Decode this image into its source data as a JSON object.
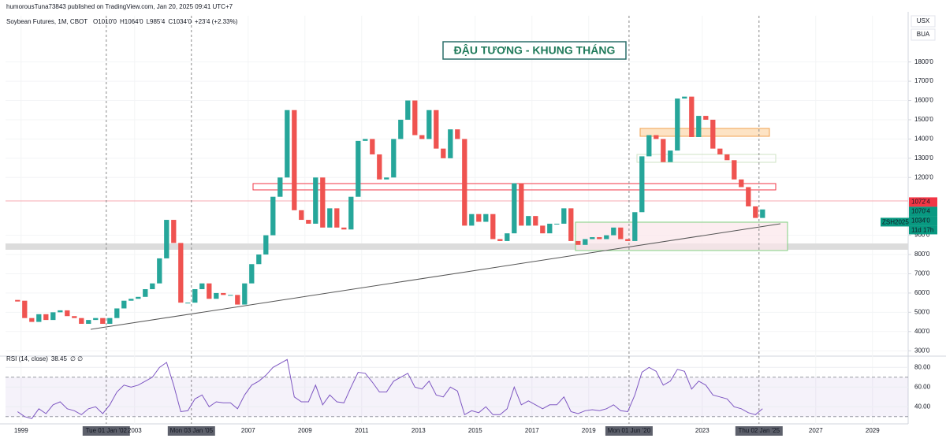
{
  "chart_data": {
    "type": "candlestick",
    "header": "humorousTuna73843 published on TradingView.com, Jan 20, 2025 09:41 UTC+7",
    "symbol": "Soybean Futures, 1M, CBOT",
    "ohlc": [
      "O1010'0",
      "H1064'0",
      "L985'4",
      "C1034'0",
      "+23'4 (+2.33%)"
    ],
    "title": "ĐẬU TƯƠNG - KHUNG THÁNG",
    "toolbar": [
      "USX",
      "BUA"
    ],
    "ticker": "ZSH2025",
    "countdown": "11d 17h",
    "up_color": "#26a69a",
    "down_color": "#ef5350",
    "grid": true,
    "x": [
      1998.75,
      1999,
      1999.25,
      1999.5,
      1999.75,
      2000,
      2000.25,
      2000.5,
      2000.75,
      2001,
      2001.25,
      2001.5,
      2001.75,
      2002,
      2002.25,
      2002.5,
      2002.75,
      2003,
      2003.25,
      2003.5,
      2003.75,
      2004,
      2004.25,
      2004.5,
      2004.75,
      2005,
      2005.25,
      2005.5,
      2005.75,
      2006,
      2006.25,
      2006.5,
      2006.75,
      2007,
      2007.25,
      2007.5,
      2007.75,
      2008,
      2008.25,
      2008.5,
      2008.75,
      2009,
      2009.25,
      2009.5,
      2009.75,
      2010,
      2010.25,
      2010.5,
      2010.75,
      2011,
      2011.25,
      2011.5,
      2011.75,
      2012,
      2012.25,
      2012.5,
      2012.75,
      2013,
      2013.25,
      2013.5,
      2013.75,
      2014,
      2014.25,
      2014.5,
      2014.75,
      2015,
      2015.25,
      2015.5,
      2015.75,
      2016,
      2016.25,
      2016.5,
      2016.75,
      2017,
      2017.25,
      2017.5,
      2017.75,
      2018,
      2018.25,
      2018.5,
      2018.75,
      2019,
      2019.25,
      2019.5,
      2019.75,
      2020,
      2020.25,
      2020.5,
      2020.75,
      2021,
      2021.25,
      2021.5,
      2021.75,
      2022,
      2022.25,
      2022.5,
      2022.75,
      2023,
      2023.25,
      2023.5,
      2023.75,
      2024,
      2024.25,
      2024.5,
      2024.75,
      2025
    ],
    "close": [
      560,
      470,
      450,
      490,
      460,
      500,
      510,
      480,
      470,
      440,
      460,
      470,
      440,
      470,
      520,
      560,
      570,
      580,
      620,
      650,
      780,
      980,
      860,
      550,
      550,
      620,
      650,
      570,
      600,
      590,
      590,
      540,
      650,
      750,
      800,
      900,
      1100,
      1200,
      1550,
      1030,
      980,
      960,
      1200,
      940,
      1040,
      940,
      930,
      1100,
      1390,
      1400,
      1320,
      1190,
      1200,
      1400,
      1500,
      1600,
      1420,
      1400,
      1550,
      1350,
      1300,
      1450,
      1400,
      950,
      1010,
      970,
      1010,
      880,
      870,
      910,
      1170,
      950,
      1000,
      950,
      910,
      960,
      960,
      1040,
      870,
      850,
      880,
      890,
      880,
      900,
      940,
      880,
      870,
      1020,
      1310,
      1420,
      1400,
      1280,
      1340,
      1610,
      1620,
      1410,
      1520,
      1500,
      1350,
      1320,
      1290,
      1190,
      1150,
      1050,
      990,
      1034
    ],
    "xlim": [
      1998.45,
      2030.2
    ],
    "xticks": [
      1999,
      2003,
      2007,
      2009,
      2011,
      2013,
      2015,
      2017,
      2019,
      2023,
      2027,
      2029
    ],
    "ylim": [
      260,
      2040
    ],
    "yticks": [
      {
        "value": 300,
        "label": "300'0"
      },
      {
        "value": 400,
        "label": "400'0"
      },
      {
        "value": 500,
        "label": "500'0"
      },
      {
        "value": 600,
        "label": "600'0"
      },
      {
        "value": 700,
        "label": "700'0"
      },
      {
        "value": 800,
        "label": "800'0"
      },
      {
        "value": 900,
        "label": "900'0"
      },
      {
        "value": 1200,
        "label": "1200'0"
      },
      {
        "value": 1300,
        "label": "1300'0"
      },
      {
        "value": 1400,
        "label": "1400'0"
      },
      {
        "value": 1500,
        "label": "1500'0"
      },
      {
        "value": 1600,
        "label": "1600'0"
      },
      {
        "value": 1700,
        "label": "1700'0"
      },
      {
        "value": 1800,
        "label": "1800'0"
      }
    ],
    "price_labels": [
      {
        "value": 1072.5,
        "label": "1072'4",
        "color": "#f23645"
      },
      {
        "value": 1070.5,
        "label": "1070'4",
        "color": "#089981"
      },
      {
        "value": 1034,
        "label": "1034'0",
        "color": "#089981"
      }
    ],
    "markers": [
      {
        "x": 2002,
        "label": "Tue 01 Jan '02"
      },
      {
        "x": 2005,
        "label": "Mon 03 Jan '05"
      },
      {
        "x": 2020.42,
        "label": "Mon 01 Jun '20"
      },
      {
        "x": 2025,
        "label": "Thu 02 Jan '25"
      }
    ],
    "rsi": {
      "title": "RSI (14, close)",
      "last": "38.45",
      "extra": "∅ ∅",
      "color": "#7e57c2",
      "values": [
        35,
        30,
        28,
        38,
        33,
        42,
        45,
        38,
        36,
        32,
        38,
        40,
        33,
        42,
        55,
        62,
        60,
        62,
        66,
        70,
        80,
        85,
        62,
        35,
        36,
        48,
        52,
        40,
        45,
        44,
        44,
        38,
        52,
        62,
        66,
        72,
        80,
        84,
        88,
        50,
        45,
        45,
        62,
        42,
        52,
        45,
        44,
        60,
        75,
        74,
        65,
        55,
        55,
        66,
        70,
        74,
        60,
        58,
        66,
        52,
        50,
        60,
        56,
        32,
        36,
        34,
        40,
        32,
        32,
        38,
        60,
        42,
        46,
        42,
        38,
        42,
        42,
        50,
        35,
        33,
        36,
        37,
        36,
        38,
        42,
        36,
        35,
        52,
        75,
        80,
        76,
        62,
        66,
        78,
        76,
        58,
        66,
        62,
        52,
        50,
        48,
        40,
        38,
        34,
        32,
        38
      ],
      "ylim": [
        25,
        89
      ],
      "yticks": [
        {
          "value": 40,
          "label": "40.00"
        },
        {
          "value": 60,
          "label": "60.00"
        },
        {
          "value": 80,
          "label": "80.00"
        }
      ],
      "band": [
        30,
        70
      ]
    }
  }
}
